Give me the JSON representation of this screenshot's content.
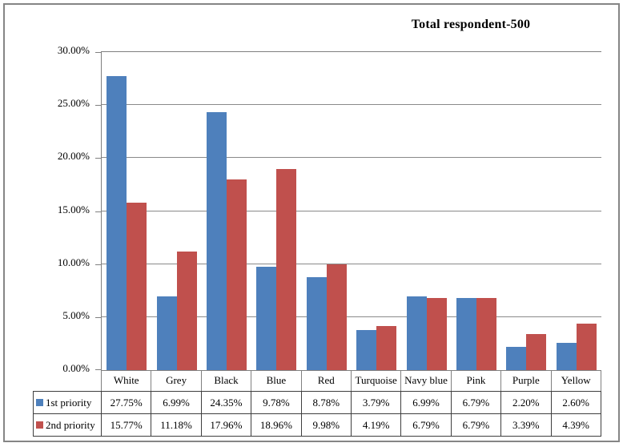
{
  "chart_data": {
    "type": "bar",
    "title": "Total respondent-500",
    "categories": [
      "White",
      "Grey",
      "Black",
      "Blue",
      "Red",
      "Turquoise",
      "Navy blue",
      "Pink",
      "Purple",
      "Yellow"
    ],
    "series": [
      {
        "name": "1st priority",
        "color": "#4E80BC",
        "values": [
          27.75,
          6.99,
          24.35,
          9.78,
          8.78,
          3.79,
          6.99,
          6.79,
          2.2,
          2.6
        ]
      },
      {
        "name": "2nd priority",
        "color": "#C0504D",
        "values": [
          15.77,
          11.18,
          17.96,
          18.96,
          9.98,
          4.19,
          6.79,
          6.79,
          3.39,
          4.39
        ]
      }
    ],
    "ylim": [
      0,
      30
    ],
    "ytick_step": 5,
    "ytick_labels": [
      "30.00%",
      "25.00%",
      "20.00%",
      "15.00%",
      "10.00%",
      "5.00%",
      "0.00%"
    ],
    "value_suffix": "%",
    "grid": true,
    "legend_position": "data-table-left-column",
    "axis_color": "#808080",
    "table_border_color": "#3F3F3F"
  }
}
